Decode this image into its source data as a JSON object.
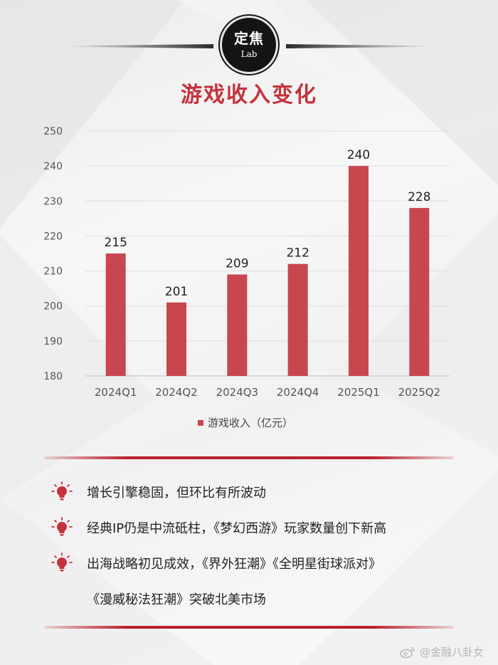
{
  "badge": {
    "main": "定焦",
    "sub": "Lab"
  },
  "title": "游戏收入变化",
  "chart_data": {
    "type": "bar",
    "categories": [
      "2024Q1",
      "2024Q2",
      "2024Q3",
      "2024Q4",
      "2025Q1",
      "2025Q2"
    ],
    "series": [
      {
        "name": "游戏收入（亿元）",
        "values": [
          215,
          201,
          209,
          212,
          240,
          228
        ]
      }
    ],
    "ylim": [
      180,
      250
    ],
    "yticks": [
      180,
      190,
      200,
      210,
      220,
      230,
      240,
      250
    ],
    "grid": true,
    "legend": "bottom",
    "bar_color": "#c8474f"
  },
  "bullets": [
    {
      "text": "增长引擎稳固，但环比有所波动",
      "icon": "lightbulb-icon"
    },
    {
      "text": "经典IP仍是中流砥柱，《梦幻西游》玩家数量创下新高",
      "icon": "lightbulb-icon"
    },
    {
      "text": "出海战略初见成效，《界外狂潮》《全明星街球派对》",
      "icon": "lightbulb-icon"
    }
  ],
  "bullet_continuation": "《漫威秘法狂潮》突破北美市场",
  "watermark": "@金融八卦女",
  "colors": {
    "accent": "#c5323c",
    "bar": "#c8474f",
    "divider": "#b8202a"
  }
}
